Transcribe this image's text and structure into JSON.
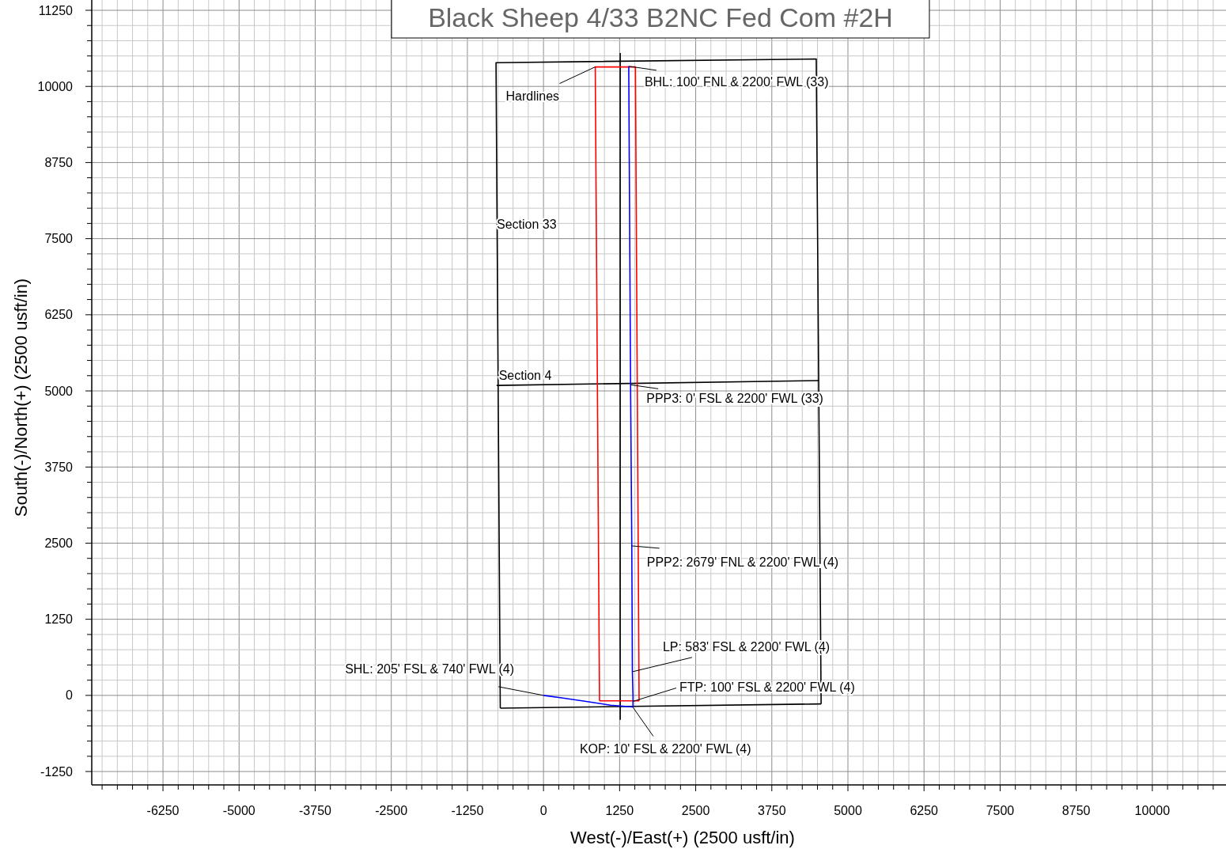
{
  "chart_data": {
    "type": "line",
    "title": "Black Sheep 4/33 B2NC Fed Com #2H",
    "xlabel": "West(-)/East(+) (2500 usft/in)",
    "ylabel": "South(-)/North(+) (2500 usft/in)",
    "xlim": [
      -7420,
      11210
    ],
    "ylim": [
      -1470,
      11250
    ],
    "grid": true,
    "marker": "none",
    "line_style": "solid",
    "xticks": [
      {
        "value": -7250,
        "label": null
      },
      {
        "value": -7000,
        "label": null
      },
      {
        "value": -6750,
        "label": null
      },
      {
        "value": -6500,
        "label": null
      },
      -6250,
      {
        "value": -6000,
        "label": null
      },
      {
        "value": -5750,
        "label": null
      },
      {
        "value": -5500,
        "label": null
      },
      {
        "value": -5250,
        "label": null
      },
      -5000,
      {
        "value": -4750,
        "label": null
      },
      {
        "value": -4500,
        "label": null
      },
      {
        "value": -4250,
        "label": null
      },
      {
        "value": -4000,
        "label": null
      },
      -3750,
      {
        "value": -3500,
        "label": null
      },
      {
        "value": -3250,
        "label": null
      },
      {
        "value": -3000,
        "label": null
      },
      {
        "value": -2750,
        "label": null
      },
      -2500,
      {
        "value": -2250,
        "label": null
      },
      {
        "value": -2000,
        "label": null
      },
      {
        "value": -1750,
        "label": null
      },
      {
        "value": -1500,
        "label": null
      },
      -1250,
      {
        "value": -1000,
        "label": null
      },
      {
        "value": -750,
        "label": null
      },
      {
        "value": -500,
        "label": null
      },
      {
        "value": -250,
        "label": null
      },
      0,
      {
        "value": 250,
        "label": null
      },
      {
        "value": 500,
        "label": null
      },
      {
        "value": 750,
        "label": null
      },
      {
        "value": 1000,
        "label": null
      },
      1250,
      {
        "value": 1500,
        "label": null
      },
      {
        "value": 1750,
        "label": null
      },
      {
        "value": 2000,
        "label": null
      },
      {
        "value": 2250,
        "label": null
      },
      2500,
      {
        "value": 2750,
        "label": null
      },
      {
        "value": 3000,
        "label": null
      },
      {
        "value": 3250,
        "label": null
      },
      {
        "value": 3500,
        "label": null
      },
      3750,
      {
        "value": 4000,
        "label": null
      },
      {
        "value": 4250,
        "label": null
      },
      {
        "value": 4500,
        "label": null
      },
      {
        "value": 4750,
        "label": null
      },
      5000,
      {
        "value": 5250,
        "label": null
      },
      {
        "value": 5500,
        "label": null
      },
      {
        "value": 5750,
        "label": null
      },
      {
        "value": 6000,
        "label": null
      },
      6250,
      {
        "value": 6500,
        "label": null
      },
      {
        "value": 6750,
        "label": null
      },
      {
        "value": 7000,
        "label": null
      },
      {
        "value": 7250,
        "label": null
      },
      7500,
      {
        "value": 7750,
        "label": null
      },
      {
        "value": 8000,
        "label": null
      },
      {
        "value": 8250,
        "label": null
      },
      {
        "value": 8500,
        "label": null
      },
      8750,
      {
        "value": 9000,
        "label": null
      },
      {
        "value": 9250,
        "label": null
      },
      {
        "value": 9500,
        "label": null
      },
      {
        "value": 9750,
        "label": null
      },
      10000,
      {
        "value": 10250,
        "label": null
      },
      {
        "value": 10500,
        "label": null
      },
      {
        "value": 10750,
        "label": null
      },
      {
        "value": 11000,
        "label": null
      }
    ],
    "yticks": [
      -1250,
      {
        "value": -1000,
        "label": null
      },
      {
        "value": -750,
        "label": null
      },
      {
        "value": -500,
        "label": null
      },
      {
        "value": -250,
        "label": null
      },
      0,
      {
        "value": 250,
        "label": null
      },
      {
        "value": 500,
        "label": null
      },
      {
        "value": 750,
        "label": null
      },
      {
        "value": 1000,
        "label": null
      },
      1250,
      {
        "value": 1500,
        "label": null
      },
      {
        "value": 1750,
        "label": null
      },
      {
        "value": 2000,
        "label": null
      },
      {
        "value": 2250,
        "label": null
      },
      2500,
      {
        "value": 2750,
        "label": null
      },
      {
        "value": 3000,
        "label": null
      },
      {
        "value": 3250,
        "label": null
      },
      {
        "value": 3500,
        "label": null
      },
      3750,
      {
        "value": 4000,
        "label": null
      },
      {
        "value": 4250,
        "label": null
      },
      {
        "value": 4500,
        "label": null
      },
      {
        "value": 4750,
        "label": null
      },
      5000,
      {
        "value": 5250,
        "label": null
      },
      {
        "value": 5500,
        "label": null
      },
      {
        "value": 5750,
        "label": null
      },
      {
        "value": 6000,
        "label": null
      },
      6250,
      {
        "value": 6500,
        "label": null
      },
      {
        "value": 6750,
        "label": null
      },
      {
        "value": 7000,
        "label": null
      },
      {
        "value": 7250,
        "label": null
      },
      7500,
      {
        "value": 7750,
        "label": null
      },
      {
        "value": 8000,
        "label": null
      },
      {
        "value": 8250,
        "label": null
      },
      {
        "value": 8500,
        "label": null
      },
      8750,
      {
        "value": 9000,
        "label": null
      },
      {
        "value": 9250,
        "label": null
      },
      {
        "value": 9500,
        "label": null
      },
      {
        "value": 9750,
        "label": null
      },
      10000,
      {
        "value": 10250,
        "label": null
      },
      {
        "value": 10500,
        "label": null
      },
      {
        "value": 10750,
        "label": null
      },
      {
        "value": 11000,
        "label": null
      },
      11250
    ],
    "series": [
      {
        "color": "#000000",
        "x": [
          -710,
          -780,
          4480,
          4560
        ],
        "values": [
          -210,
          10390,
          10450,
          -140
        ]
      },
      {
        "color": "#000000",
        "x": [
          -710,
          4560
        ],
        "values": [
          -210,
          -140
        ]
      },
      {
        "color": "#000000",
        "x": [
          -770,
          4520
        ],
        "values": [
          5090,
          5170
        ]
      },
      {
        "color": "#000000",
        "x": [
          1260,
          1260
        ],
        "values": [
          10550,
          -400
        ]
      },
      {
        "color": "#ff0000",
        "x": [
          920,
          850,
          1510,
          1570
        ],
        "values": [
          -90,
          10320,
          10320,
          -90
        ]
      },
      {
        "color": "#ff0000",
        "x": [
          920,
          1570
        ],
        "values": [
          -90,
          -90
        ]
      },
      {
        "color": "#0000ff",
        "x": [
          0,
          300,
          700,
          1100,
          1470,
          1470,
          1460,
          1450,
          1430,
          1400
        ],
        "values": [
          0,
          -40,
          -100,
          -160,
          -190,
          0,
          390,
          2460,
          5100,
          10330
        ]
      }
    ],
    "annotations": [
      {
        "text": "Hardlines",
        "x": 849,
        "y": 10320
      },
      {
        "text": "BHL: 100' FNL & 2200' FWL (33)",
        "x": 1400,
        "y": 10330
      },
      "Section 33",
      {
        "text": "Section 4",
        "x": -760,
        "y": 5100
      },
      {
        "text": "PPP3: 0' FSL & 2200' FWL (33)",
        "x": 1430,
        "y": 5100
      },
      {
        "text": "PPP2: 2679' FNL & 2200' FWL (4)",
        "x": 1450,
        "y": 2455
      },
      {
        "text": "LP: 583' FSL & 2200' FWL (4)",
        "x": 1465,
        "y": 390
      },
      {
        "text": "SHL: 205' FSL & 740' FWL (4)",
        "x": 0,
        "y": 0
      },
      {
        "text": "FTP: 100' FSL & 2200' FWL (4)",
        "x": 1465,
        "y": -100
      },
      {
        "text": "KOP: 10' FSL & 2200' FWL (4)",
        "x": 1465,
        "y": -190
      }
    ]
  }
}
